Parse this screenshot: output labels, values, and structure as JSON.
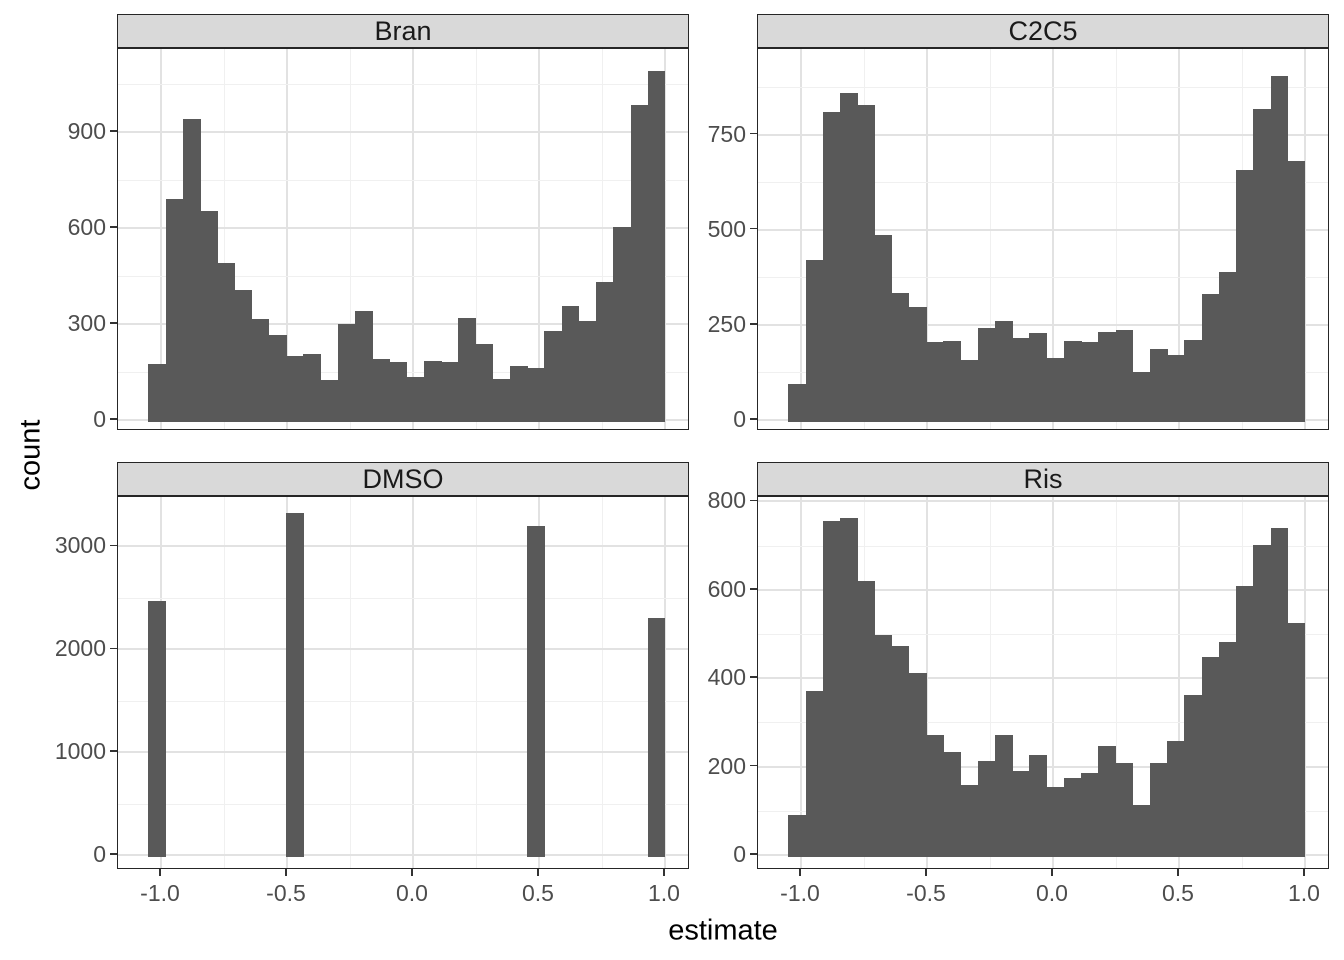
{
  "figure": {
    "y_axis_title": "count",
    "x_axis_title": "estimate",
    "bar_color": "#595959",
    "strip_fill": "#D9D9D9",
    "panel_border_color": "#262626",
    "grid_major_color": "#e2e2e2",
    "grid_minor_color": "#f0f0f0",
    "axis_text_color": "#4d4d4d",
    "background_color": "#ffffff"
  },
  "chart_data": {
    "type": "bar",
    "subtype": "faceted-histogram",
    "title": "",
    "xlabel": "estimate",
    "ylabel": "count",
    "legend": "none",
    "grid": "on",
    "facet_layout": [
      "Bran",
      "C2C5",
      "DMSO",
      "Ris"
    ],
    "bin_start": -1.05,
    "bin_width": 0.0683333,
    "n_bins": 30,
    "xlim": [
      -1.17,
      1.1
    ],
    "x_ticks": [
      -1.0,
      -0.5,
      0.0,
      0.5,
      1.0
    ],
    "x_tick_labels": [
      "-1.0",
      "-0.5",
      "0.0",
      "0.5",
      "1.0"
    ],
    "x_minor": [
      -0.75,
      -0.25,
      0.25,
      0.75
    ],
    "facets": [
      {
        "label": "Bran",
        "y_ticks": [
          0,
          300,
          600,
          900
        ],
        "y_minor": [
          150,
          450,
          750,
          1050
        ],
        "y_top": 1160,
        "counts": [
          175,
          690,
          940,
          655,
          490,
          405,
          315,
          265,
          200,
          205,
          125,
          300,
          340,
          190,
          180,
          135,
          185,
          180,
          320,
          238,
          128,
          170,
          162,
          277,
          355,
          310,
          430,
          605,
          985,
          1090
        ]
      },
      {
        "label": "C2C5",
        "y_ticks": [
          0,
          250,
          500,
          750
        ],
        "y_minor": [
          125,
          375,
          625,
          875
        ],
        "y_top": 975,
        "counts": [
          94,
          420,
          810,
          860,
          828,
          486,
          335,
          298,
          205,
          208,
          157,
          241,
          261,
          216,
          228,
          163,
          207,
          204,
          232,
          236,
          125,
          187,
          172,
          210,
          332,
          389,
          657,
          818,
          904,
          681
        ]
      },
      {
        "label": "DMSO",
        "y_ticks": [
          0,
          1000,
          2000,
          3000
        ],
        "y_minor": [
          500,
          1500,
          2500
        ],
        "y_top": 3480,
        "counts": [
          2470,
          0,
          0,
          0,
          0,
          0,
          0,
          0,
          3320,
          0,
          0,
          0,
          0,
          0,
          0,
          0,
          0,
          0,
          0,
          0,
          0,
          0,
          3200,
          0,
          0,
          0,
          0,
          0,
          0,
          2300
        ]
      },
      {
        "label": "Ris",
        "y_ticks": [
          0,
          200,
          400,
          600,
          800
        ],
        "y_minor": [
          100,
          300,
          500,
          700
        ],
        "y_top": 810,
        "counts": [
          90,
          370,
          755,
          762,
          620,
          498,
          472,
          412,
          272,
          234,
          158,
          212,
          271,
          191,
          226,
          153,
          174,
          186,
          247,
          208,
          113,
          209,
          257,
          362,
          447,
          483,
          608,
          702,
          740,
          525
        ]
      }
    ]
  }
}
